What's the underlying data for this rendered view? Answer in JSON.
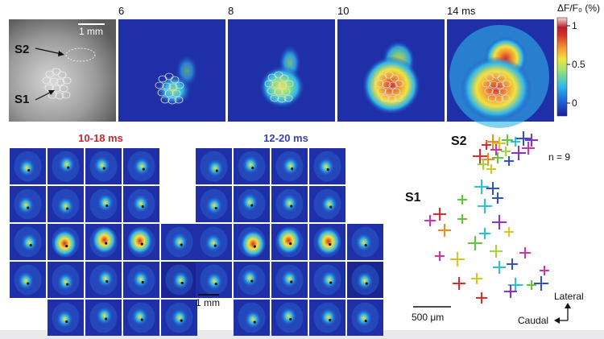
{
  "top_row": {
    "scale_bar_label": "1 mm",
    "area_labels": [
      "S2",
      "S1"
    ],
    "time_labels": [
      "6",
      "8",
      "10",
      "14 ms"
    ],
    "colorbar": {
      "title": "ΔF/F₀ (%)",
      "ticks": [
        "1",
        "0.5",
        "0"
      ]
    }
  },
  "grids": {
    "left_title": "10-18 ms",
    "left_title_color": "#d0262b",
    "right_title": "12-20 ms",
    "right_title_color": "#3a3fb3",
    "scale_bar_label": "1 mm"
  },
  "scatter": {
    "area_labels": [
      "S2",
      "S1"
    ],
    "n_label": "n = 9",
    "scale_bar_label": "500 μm",
    "orientation": [
      "Lateral",
      "Caudal"
    ]
  },
  "colors": {
    "panel_bg": "#1e2fa8",
    "colormap": [
      "#1a1f9c",
      "#1f63d8",
      "#2fb6ea",
      "#8ee27c",
      "#f2e23d",
      "#f29230",
      "#d6332b",
      "#b81d2a",
      "#f7d9d9"
    ]
  }
}
